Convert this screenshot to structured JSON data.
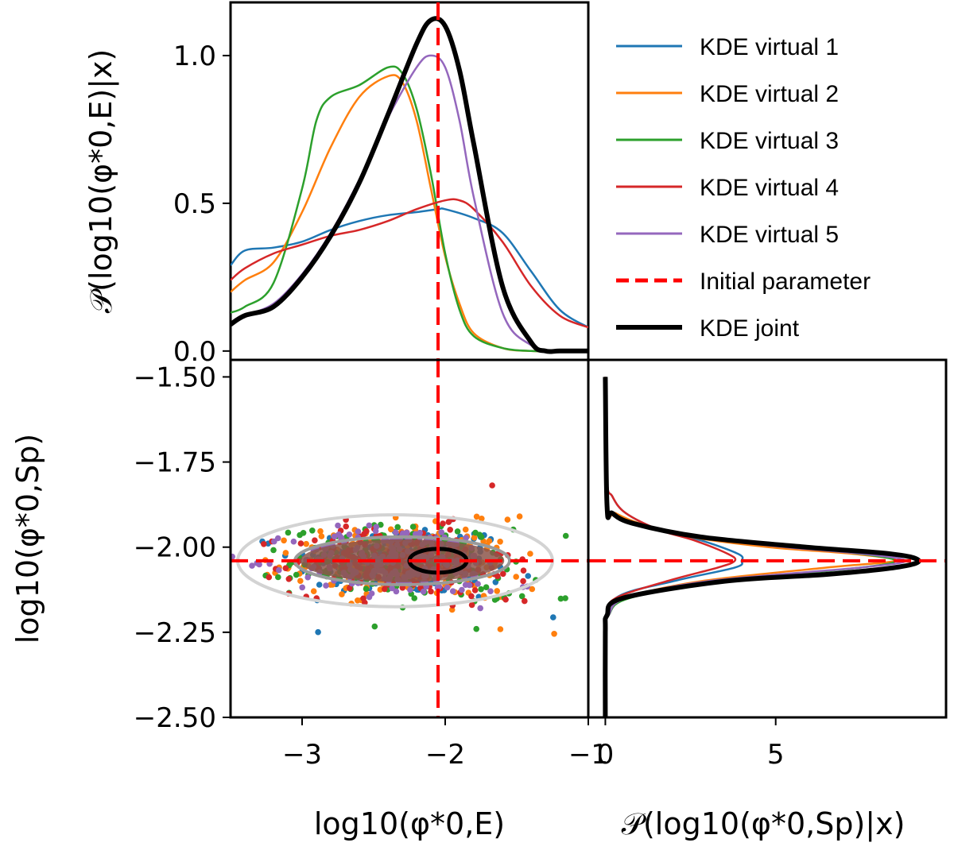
{
  "chart_data": [
    {
      "panel": "top-marginal",
      "type": "line",
      "ylabel": "𝒫(log10(φ*0,E)|x)",
      "xlim": [
        -3.5,
        -1.0
      ],
      "ylim": [
        -0.03,
        1.18
      ],
      "yticks": [
        0.0,
        0.5,
        1.0
      ],
      "ytick_labels": [
        "0.0",
        "0.5",
        "1.0"
      ],
      "series": [
        {
          "name": "KDE virtual 1",
          "color": "#1f77b4",
          "x": [
            -3.5,
            -3.4,
            -3.2,
            -3.0,
            -2.8,
            -2.6,
            -2.4,
            -2.2,
            -2.05,
            -2.0,
            -1.8,
            -1.6,
            -1.4,
            -1.2,
            -1.0
          ],
          "y": [
            0.29,
            0.34,
            0.35,
            0.37,
            0.41,
            0.44,
            0.46,
            0.47,
            0.48,
            0.48,
            0.45,
            0.4,
            0.27,
            0.14,
            0.08
          ]
        },
        {
          "name": "KDE virtual 2",
          "color": "#ff7f0e",
          "x": [
            -3.5,
            -3.4,
            -3.2,
            -3.0,
            -2.8,
            -2.6,
            -2.4,
            -2.3,
            -2.2,
            -2.1,
            -2.0,
            -1.9,
            -1.8,
            -1.6,
            -1.4,
            -1.2,
            -1.0
          ],
          "y": [
            0.2,
            0.24,
            0.3,
            0.47,
            0.69,
            0.86,
            0.93,
            0.91,
            0.78,
            0.55,
            0.32,
            0.16,
            0.06,
            0.01,
            0.0,
            0.0,
            0.0
          ]
        },
        {
          "name": "KDE virtual 3",
          "color": "#2ca02c",
          "x": [
            -3.5,
            -3.4,
            -3.2,
            -3.0,
            -2.9,
            -2.8,
            -2.6,
            -2.4,
            -2.3,
            -2.2,
            -2.1,
            -2.0,
            -1.9,
            -1.8,
            -1.6,
            -1.4,
            -1.2,
            -1.0
          ],
          "y": [
            0.13,
            0.15,
            0.23,
            0.55,
            0.78,
            0.86,
            0.9,
            0.96,
            0.94,
            0.82,
            0.6,
            0.33,
            0.14,
            0.05,
            0.01,
            0.0,
            0.0,
            0.0
          ]
        },
        {
          "name": "KDE virtual 4",
          "color": "#d62728",
          "x": [
            -3.5,
            -3.4,
            -3.2,
            -3.0,
            -2.8,
            -2.6,
            -2.4,
            -2.2,
            -2.0,
            -1.9,
            -1.8,
            -1.6,
            -1.4,
            -1.2,
            -1.0
          ],
          "y": [
            0.24,
            0.28,
            0.33,
            0.36,
            0.39,
            0.41,
            0.44,
            0.48,
            0.51,
            0.51,
            0.48,
            0.37,
            0.22,
            0.12,
            0.08
          ]
        },
        {
          "name": "KDE virtual 5",
          "color": "#9467bd",
          "x": [
            -3.5,
            -3.4,
            -3.2,
            -3.0,
            -2.8,
            -2.6,
            -2.4,
            -2.2,
            -2.1,
            -2.0,
            -1.9,
            -1.8,
            -1.6,
            -1.4,
            -1.2,
            -1.0
          ],
          "y": [
            0.09,
            0.12,
            0.16,
            0.26,
            0.4,
            0.58,
            0.79,
            0.96,
            1.0,
            0.96,
            0.78,
            0.52,
            0.13,
            0.02,
            0.0,
            0.0
          ]
        },
        {
          "name": "KDE joint",
          "color": "#000000",
          "x": [
            -3.5,
            -3.4,
            -3.2,
            -3.0,
            -2.8,
            -2.6,
            -2.4,
            -2.2,
            -2.1,
            -2.0,
            -1.9,
            -1.8,
            -1.6,
            -1.4,
            -1.3,
            -1.2,
            -1.0
          ],
          "y": [
            0.09,
            0.12,
            0.15,
            0.25,
            0.39,
            0.57,
            0.8,
            1.04,
            1.12,
            1.1,
            0.95,
            0.7,
            0.22,
            0.03,
            0.0,
            0.0,
            0.0
          ]
        }
      ],
      "vline": -2.05
    },
    {
      "panel": "joint-scatter",
      "type": "scatter",
      "xlabel": "log10(φ*0,E)",
      "ylabel": "log10(φ*0,Sp)",
      "xlim": [
        -3.5,
        -1.0
      ],
      "ylim": [
        -2.5,
        -1.45
      ],
      "xticks": [
        -3,
        -2,
        -1
      ],
      "xtick_labels": [
        "−3",
        "−2",
        "−1"
      ],
      "yticks": [
        -2.5,
        -2.25,
        -2.0,
        -1.75,
        -1.5
      ],
      "ytick_labels": [
        "−2.50",
        "−2.25",
        "−2.00",
        "−1.75",
        "−1.50"
      ],
      "scatter_center": [
        -2.3,
        -2.04
      ],
      "scatter_sd": [
        0.38,
        0.05
      ],
      "scatter_points_per_series": 230,
      "series_colors": [
        "#1f77b4",
        "#ff7f0e",
        "#2ca02c",
        "#d62728",
        "#9467bd"
      ],
      "contours": [
        {
          "level": "outer",
          "color": "#d3d3d3",
          "center": [
            -2.35,
            -2.04
          ],
          "rx": 1.1,
          "ry": 0.135
        },
        {
          "level": "middle",
          "color": "#9a9a9a",
          "center": [
            -2.3,
            -2.04
          ],
          "rx": 0.75,
          "ry": 0.07
        },
        {
          "level": "inner",
          "color": "#000000",
          "center": [
            -2.05,
            -2.04
          ],
          "rx": 0.2,
          "ry": 0.035
        }
      ],
      "vline": -2.05,
      "hline": -2.04
    },
    {
      "panel": "right-marginal",
      "type": "line",
      "orientation": "horizontal",
      "xlabel": "𝒫(log10(φ*0,Sp)|x)",
      "xlim": [
        -0.5,
        10.0
      ],
      "ylim": [
        -2.5,
        -1.45
      ],
      "xticks": [
        0,
        5
      ],
      "xtick_labels": [
        "0",
        "5"
      ],
      "series": [
        {
          "name": "KDE virtual 1",
          "color": "#1f77b4",
          "y": [
            -2.5,
            -2.25,
            -2.15,
            -2.1,
            -2.06,
            -2.04,
            -2.02,
            -1.98,
            -1.95,
            -1.9,
            -1.85,
            -1.8,
            -1.5
          ],
          "x": [
            0,
            0,
            0.3,
            2.0,
            3.8,
            4.0,
            3.9,
            2.8,
            1.6,
            0.6,
            0.2,
            0.05,
            0
          ]
        },
        {
          "name": "KDE virtual 2",
          "color": "#ff7f0e",
          "y": [
            -2.5,
            -2.25,
            -2.2,
            -2.15,
            -2.1,
            -2.06,
            -2.04,
            -2.02,
            -2.0,
            -1.97,
            -1.93,
            -1.9,
            -1.88,
            -1.5
          ],
          "x": [
            0,
            0,
            0.1,
            0.6,
            2.8,
            6.5,
            8.5,
            7.3,
            4.8,
            2.5,
            1.0,
            0.3,
            0.05,
            0
          ]
        },
        {
          "name": "KDE virtual 3",
          "color": "#2ca02c",
          "y": [
            -2.5,
            -2.25,
            -2.2,
            -2.15,
            -2.1,
            -2.06,
            -2.04,
            -2.02,
            -2.0,
            -1.97,
            -1.93,
            -1.9,
            -1.88,
            -1.5
          ],
          "x": [
            0,
            0,
            0.1,
            0.7,
            3.5,
            7.5,
            8.5,
            7.5,
            5.5,
            2.6,
            0.8,
            0.2,
            0.05,
            0
          ]
        },
        {
          "name": "KDE virtual 4",
          "color": "#d62728",
          "y": [
            -2.5,
            -2.3,
            -2.2,
            -2.15,
            -2.1,
            -2.06,
            -2.04,
            -2.02,
            -1.98,
            -1.95,
            -1.9,
            -1.85,
            -1.8,
            -1.5
          ],
          "x": [
            0,
            0,
            0.05,
            0.3,
            1.8,
            3.3,
            3.8,
            3.6,
            2.6,
            1.6,
            0.6,
            0.2,
            0.05,
            0
          ]
        },
        {
          "name": "KDE virtual 5",
          "color": "#9467bd",
          "y": [
            -2.5,
            -2.25,
            -2.2,
            -2.15,
            -2.1,
            -2.06,
            -2.04,
            -2.02,
            -2.0,
            -1.97,
            -1.93,
            -1.9,
            -1.88,
            -1.5
          ],
          "x": [
            0,
            0,
            0.1,
            0.6,
            3.0,
            7.5,
            8.8,
            7.6,
            5.3,
            2.6,
            0.8,
            0.2,
            0.05,
            0
          ]
        },
        {
          "name": "KDE joint",
          "color": "#000000",
          "y": [
            -2.5,
            -2.25,
            -2.2,
            -2.15,
            -2.1,
            -2.08,
            -2.06,
            -2.04,
            -2.02,
            -2.0,
            -1.97,
            -1.93,
            -1.9,
            -1.88,
            -1.5
          ],
          "x": [
            0,
            0,
            0.05,
            0.5,
            3.5,
            6.5,
            8.5,
            9.2,
            8.4,
            5.9,
            2.8,
            0.8,
            0.2,
            0.05,
            0
          ]
        }
      ],
      "hline": -2.04
    }
  ],
  "legend": {
    "placement": "top-right",
    "entries": [
      {
        "label": "KDE virtual 1",
        "color": "#1f77b4",
        "style": "solid"
      },
      {
        "label": "KDE virtual 2",
        "color": "#ff7f0e",
        "style": "solid"
      },
      {
        "label": "KDE virtual 3",
        "color": "#2ca02c",
        "style": "solid"
      },
      {
        "label": "KDE virtual 4",
        "color": "#d62728",
        "style": "solid"
      },
      {
        "label": "KDE virtual 5",
        "color": "#9467bd",
        "style": "solid"
      },
      {
        "label": "Initial parameter",
        "color": "#ff0000",
        "style": "dashed"
      },
      {
        "label": "KDE joint",
        "color": "#000000",
        "style": "bold"
      }
    ]
  }
}
